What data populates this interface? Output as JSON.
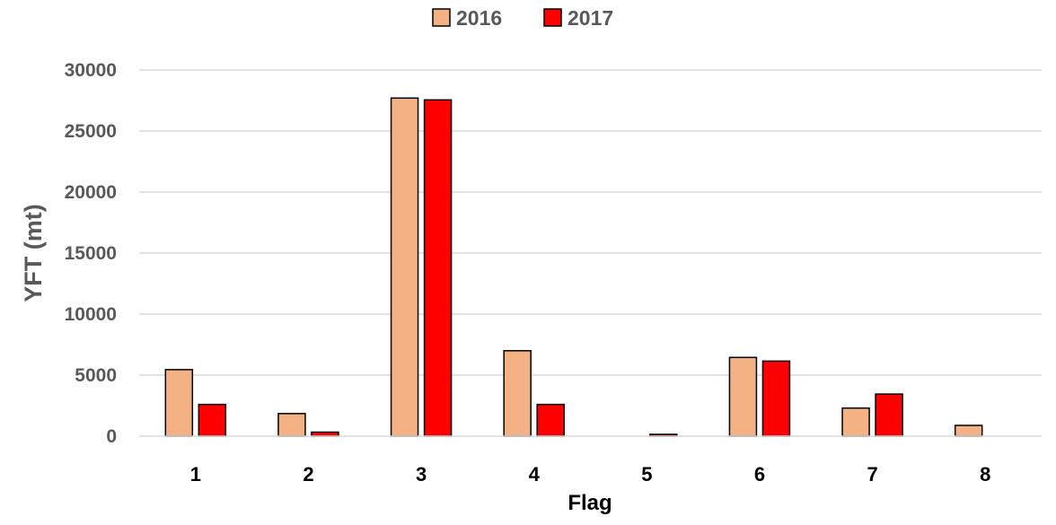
{
  "chart_data": {
    "type": "bar",
    "title": "",
    "xlabel": "Flag",
    "ylabel": "YFT  (mt)",
    "ylim": [
      0,
      30000
    ],
    "yticks": [
      0,
      5000,
      10000,
      15000,
      20000,
      25000,
      30000
    ],
    "grid": true,
    "legend_position": "top-center",
    "categories": [
      "1",
      "2",
      "3",
      "4",
      "5",
      "6",
      "7",
      "8"
    ],
    "series": [
      {
        "name": "2016",
        "color": "#F4B183",
        "values": [
          5450,
          1850,
          27700,
          7000,
          0,
          6450,
          2300,
          880
        ]
      },
      {
        "name": "2017",
        "color": "#FF0000",
        "values": [
          2600,
          330,
          27550,
          2600,
          150,
          6150,
          3450,
          0
        ]
      }
    ]
  }
}
